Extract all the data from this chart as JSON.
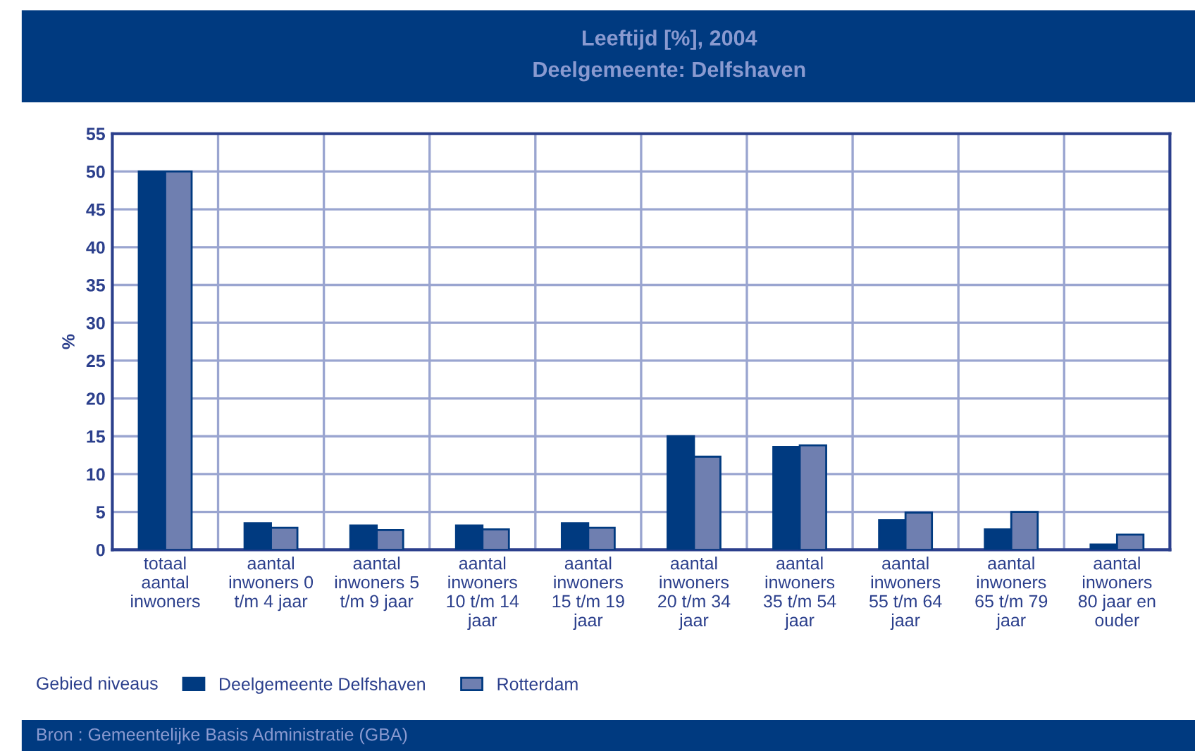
{
  "chart_data": {
    "type": "bar",
    "title": "Leeftijd [%], 2004",
    "subtitle": "Deelgemeente: Delfshaven",
    "ylabel": "%",
    "legend_title": "Gebied niveaus",
    "annotations": [
      "Bron : Gemeentelijke Basis Administratie (GBA)"
    ],
    "categories": [
      "totaal\naantal\ninwoners",
      "aantal\ninwoners 0\nt/m 4 jaar",
      "aantal\ninwoners 5\nt/m 9 jaar",
      "aantal\ninwoners\n10 t/m 14\njaar",
      "aantal\ninwoners\n15 t/m 19\njaar",
      "aantal\ninwoners\n20 t/m 34\njaar",
      "aantal\ninwoners\n35 t/m 54\njaar",
      "aantal\ninwoners\n55 t/m 64\njaar",
      "aantal\ninwoners\n65 t/m 79\njaar",
      "aantal\ninwoners\n80 jaar en\nouder"
    ],
    "series": [
      {
        "name": "Deelgemeente Delfshaven",
        "color": "#003a80",
        "values": [
          50,
          3.5,
          3.2,
          3.2,
          3.5,
          15,
          13.6,
          3.9,
          2.7,
          0.7
        ]
      },
      {
        "name": "Rotterdam",
        "color": "#6f7fb0",
        "values": [
          50,
          2.9,
          2.6,
          2.7,
          2.9,
          12.3,
          13.8,
          4.9,
          5.0,
          2.0
        ]
      }
    ],
    "ylim": [
      0,
      55
    ],
    "yticks": [
      0,
      5,
      10,
      15,
      20,
      25,
      30,
      35,
      40,
      45,
      50,
      55
    ],
    "grid": true,
    "legend": "bottom left"
  }
}
